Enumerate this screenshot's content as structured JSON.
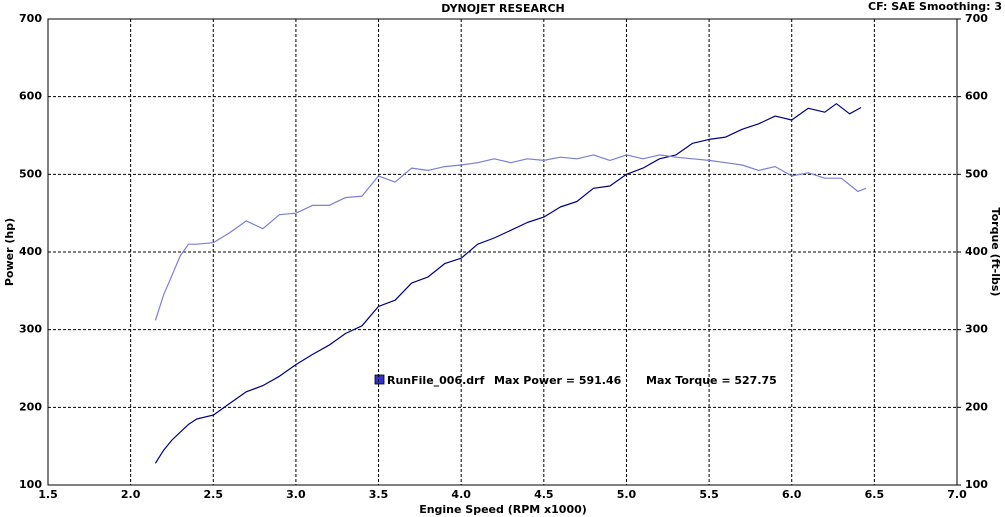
{
  "chart_data": {
    "type": "line",
    "title": "DYNOJET RESEARCH",
    "subtitle": "CF: SAE  Smoothing: 3",
    "x_label": "Engine Speed (RPM x1000)",
    "y_label": "Power (hp)",
    "y2_label": "Torque (ft-lbs)",
    "annotations": [
      "RunFile_006.drf",
      "Max Power = 591.46",
      "Max Torque = 527.75"
    ],
    "legend_color": "#3333cc",
    "grid": true,
    "xlim": [
      1.5,
      7.0
    ],
    "xticks": [
      1.5,
      {
        "value": 2,
        "label": "2.0"
      },
      2.5,
      {
        "value": 3,
        "label": "3.0"
      },
      3.5,
      {
        "value": 4,
        "label": "4.0"
      },
      4.5,
      {
        "value": 5,
        "label": "5.0"
      },
      5.5,
      {
        "value": 6,
        "label": "6.0"
      },
      6.5,
      {
        "value": 7,
        "label": "7.0"
      }
    ],
    "ylim": [
      100,
      700
    ],
    "yticks": [
      100,
      200,
      300,
      400,
      500,
      600,
      700
    ],
    "y2lim": [
      100,
      700
    ],
    "y2ticks": [
      100,
      200,
      300,
      400,
      500,
      600,
      700
    ],
    "series": [
      {
        "color": "#000080",
        "x": [
          2.15,
          2.2,
          2.25,
          2.3,
          2.35,
          2.4,
          2.5,
          2.6,
          2.7,
          2.8,
          2.9,
          3.0,
          3.1,
          3.2,
          3.3,
          3.4,
          3.5,
          3.6,
          3.7,
          3.8,
          3.9,
          4.0,
          4.1,
          4.2,
          4.3,
          4.4,
          4.5,
          4.6,
          4.7,
          4.8,
          4.9,
          5.0,
          5.1,
          5.2,
          5.3,
          5.4,
          5.5,
          5.6,
          5.7,
          5.8,
          5.9,
          6.0,
          6.1,
          6.2,
          6.27,
          6.35,
          6.42
        ],
        "values": [
          128,
          145,
          158,
          168,
          178,
          185,
          190,
          205,
          220,
          228,
          240,
          255,
          268,
          280,
          295,
          305,
          330,
          338,
          360,
          368,
          385,
          392,
          410,
          418,
          428,
          438,
          445,
          458,
          465,
          482,
          485,
          500,
          508,
          520,
          525,
          540,
          545,
          548,
          558,
          565,
          575,
          570,
          585,
          580,
          591,
          578,
          586
        ]
      },
      {
        "color": "#7b7fd6",
        "axis": "y2",
        "x": [
          2.15,
          2.2,
          2.25,
          2.3,
          2.35,
          2.4,
          2.5,
          2.6,
          2.7,
          2.8,
          2.9,
          3.0,
          3.1,
          3.2,
          3.3,
          3.4,
          3.5,
          3.6,
          3.7,
          3.8,
          3.9,
          4.0,
          4.1,
          4.2,
          4.3,
          4.4,
          4.5,
          4.6,
          4.7,
          4.8,
          4.9,
          5.0,
          5.1,
          5.2,
          5.3,
          5.4,
          5.5,
          5.6,
          5.7,
          5.8,
          5.9,
          6.0,
          6.1,
          6.2,
          6.3,
          6.4,
          6.45
        ],
        "values": [
          312,
          345,
          370,
          395,
          410,
          410,
          412,
          425,
          440,
          430,
          448,
          450,
          460,
          460,
          470,
          472,
          498,
          490,
          508,
          505,
          510,
          512,
          515,
          520,
          515,
          520,
          518,
          522,
          520,
          525,
          518,
          525,
          520,
          525,
          522,
          520,
          518,
          515,
          512,
          505,
          510,
          498,
          502,
          495,
          495,
          478,
          482
        ]
      }
    ]
  }
}
